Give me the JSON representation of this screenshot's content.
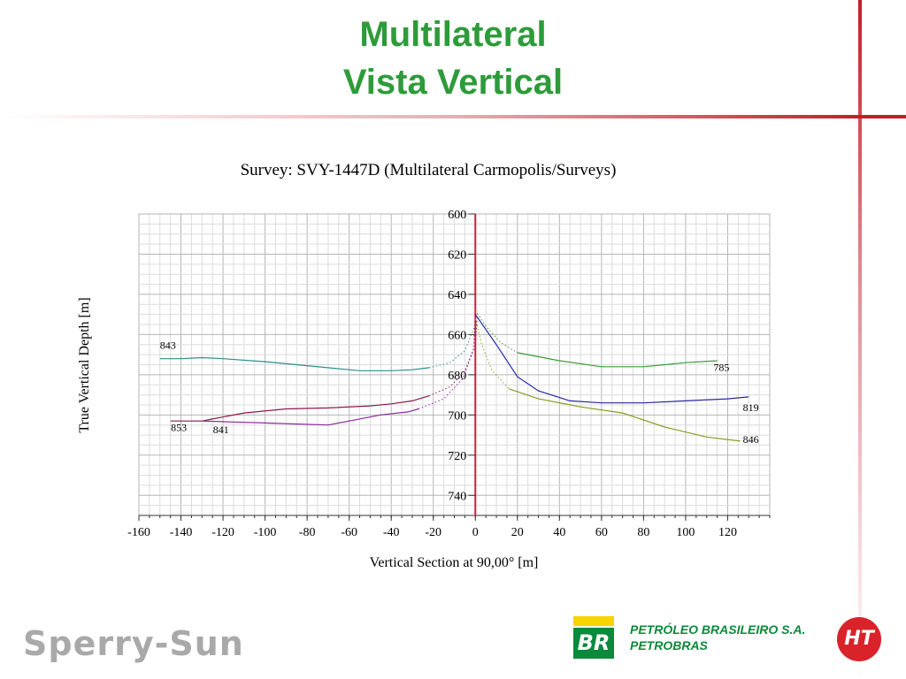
{
  "slide": {
    "title_line1": "Multilateral",
    "title_line2": "Vista Vertical",
    "colors": {
      "title": "#2e9b3a",
      "accent_red": "#c41e2a"
    }
  },
  "footer": {
    "sperry": "Sperry-Sun",
    "br_mark": "BR",
    "petrobras_line1": "PETRÓLEO BRASILEIRO S.A.",
    "petrobras_line2": "PETROBRAS",
    "ht_mark": "HT"
  },
  "chart_data": {
    "type": "line",
    "title": "Survey: SVY-1447D (Multilateral Carmopolis/Surveys)",
    "xlabel": "Vertical Section at 90,00° [m]",
    "ylabel": "True Vertical Depth [m]",
    "xlim": [
      -160,
      140
    ],
    "ylim": [
      600,
      750
    ],
    "y_inverted": true,
    "grid": true,
    "x_ticks": [
      -160,
      -140,
      -120,
      -100,
      -80,
      -60,
      -40,
      -20,
      0,
      20,
      40,
      60,
      80,
      100,
      120
    ],
    "y_ticks": [
      600,
      620,
      640,
      660,
      680,
      700,
      720,
      740
    ],
    "reference_line": {
      "x": 0,
      "color": "#d81b3c"
    },
    "series": [
      {
        "name": "843",
        "color": "#2a8f8a",
        "points": [
          [
            -150,
            672
          ],
          [
            -140,
            672
          ],
          [
            -130,
            671.5
          ],
          [
            -120,
            672
          ],
          [
            -100,
            673.5
          ],
          [
            -80,
            675.5
          ],
          [
            -60,
            677.5
          ],
          [
            -55,
            678
          ],
          [
            -40,
            678
          ],
          [
            -30,
            677.5
          ],
          [
            -22,
            676.5
          ]
        ],
        "dotted": [
          [
            -22,
            676.5
          ],
          [
            -12,
            674
          ],
          [
            -5,
            668
          ],
          [
            0,
            655
          ]
        ]
      },
      {
        "name": "853",
        "color": "#8b1a4a",
        "points": [
          [
            -145,
            703
          ],
          [
            -130,
            703
          ],
          [
            -125,
            702
          ],
          [
            -110,
            699
          ],
          [
            -90,
            697
          ],
          [
            -70,
            696.5
          ],
          [
            -50,
            695.5
          ],
          [
            -40,
            694.5
          ],
          [
            -30,
            693
          ],
          [
            -22,
            690.5
          ]
        ],
        "dotted": [
          [
            -22,
            690.5
          ],
          [
            -12,
            686
          ],
          [
            -5,
            678
          ],
          [
            0,
            665
          ],
          [
            1,
            650
          ]
        ]
      },
      {
        "name": "841",
        "color": "#8a2a9a",
        "points": [
          [
            -130,
            703
          ],
          [
            -115,
            703.5
          ],
          [
            -100,
            704
          ],
          [
            -85,
            704.5
          ],
          [
            -70,
            705
          ],
          [
            -60,
            703
          ],
          [
            -45,
            700
          ],
          [
            -32,
            698.5
          ],
          [
            -27,
            697
          ]
        ],
        "dotted": [
          [
            -27,
            697
          ],
          [
            -15,
            692
          ],
          [
            -6,
            682
          ],
          [
            -1,
            668
          ],
          [
            0,
            650
          ]
        ]
      },
      {
        "name": "785",
        "color": "#3a9a3a",
        "points": [
          [
            20,
            669
          ],
          [
            40,
            673
          ],
          [
            60,
            676
          ],
          [
            80,
            676
          ],
          [
            100,
            674
          ],
          [
            115,
            673
          ]
        ],
        "dotted": [
          [
            0,
            648
          ],
          [
            5,
            656
          ],
          [
            12,
            664
          ],
          [
            20,
            669
          ]
        ]
      },
      {
        "name": "819",
        "color": "#2828a0",
        "points": [
          [
            0,
            650
          ],
          [
            10,
            665
          ],
          [
            20,
            681
          ],
          [
            30,
            688
          ],
          [
            45,
            693
          ],
          [
            60,
            694
          ],
          [
            80,
            694
          ],
          [
            100,
            693
          ],
          [
            120,
            692
          ],
          [
            130,
            691
          ]
        ],
        "dotted": []
      },
      {
        "name": "846",
        "color": "#8a9a20",
        "points": [
          [
            16,
            687
          ],
          [
            30,
            692
          ],
          [
            50,
            696
          ],
          [
            70,
            699
          ],
          [
            90,
            706
          ],
          [
            110,
            711
          ],
          [
            126,
            713
          ]
        ],
        "dotted": [
          [
            0,
            652
          ],
          [
            3,
            665
          ],
          [
            8,
            678
          ],
          [
            16,
            687
          ]
        ]
      }
    ]
  }
}
